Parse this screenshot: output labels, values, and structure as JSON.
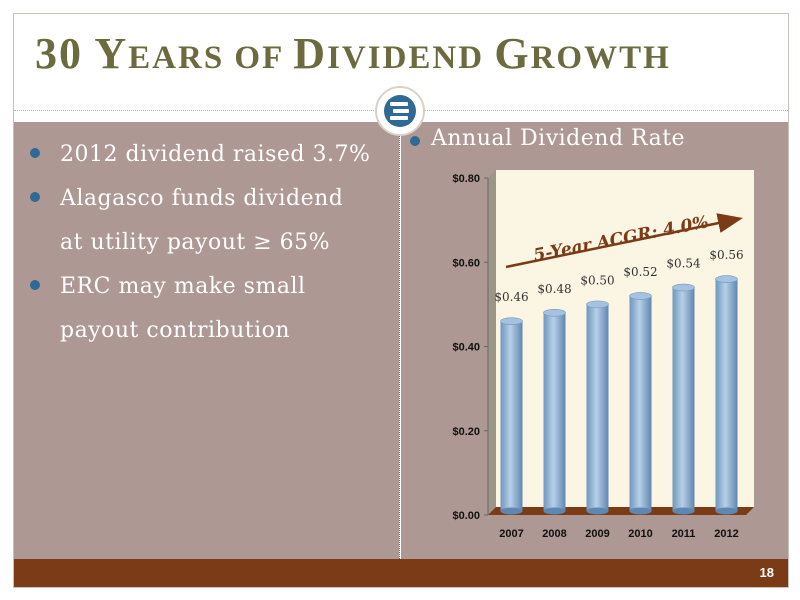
{
  "slide": {
    "title_parts": [
      {
        "text": "30 ",
        "size": "big"
      },
      {
        "text": "Y",
        "size": "big"
      },
      {
        "text": "EARS OF ",
        "size": "small"
      },
      {
        "text": "D",
        "size": "big"
      },
      {
        "text": "IVIDEND ",
        "size": "small"
      },
      {
        "text": "G",
        "size": "big"
      },
      {
        "text": "ROWTH",
        "size": "small"
      }
    ],
    "page_number": "18",
    "logo_icon": "energen-logo-icon",
    "colors": {
      "title": "#6b6b3f",
      "panel": "#ad9893",
      "footer": "#7a3b16",
      "accent": "#2f6a96"
    }
  },
  "bullets": [
    {
      "lines": [
        "2012 dividend raised 3.7%"
      ]
    },
    {
      "lines": [
        "Alagasco funds dividend",
        "at utility payout ≥ 65%"
      ]
    },
    {
      "lines": [
        "ERC may make small",
        "payout contribution"
      ]
    }
  ],
  "chart_heading": "Annual Dividend Rate",
  "chart_data": {
    "type": "bar",
    "categories": [
      "2007",
      "2008",
      "2009",
      "2010",
      "2011",
      "2012"
    ],
    "values": [
      0.46,
      0.48,
      0.5,
      0.52,
      0.54,
      0.56
    ],
    "value_labels": [
      "$0.46",
      "$0.48",
      "$0.50",
      "$0.52",
      "$0.54",
      "$0.56"
    ],
    "y_ticks": [
      {
        "value": 0.0,
        "label": "$0.00"
      },
      {
        "value": 0.2,
        "label": "$0.20"
      },
      {
        "value": 0.4,
        "label": "$0.40"
      },
      {
        "value": 0.6,
        "label": "$0.60"
      },
      {
        "value": 0.8,
        "label": "$0.80"
      }
    ],
    "ylim": [
      0,
      0.8
    ],
    "grid": false,
    "annotation": "5-Year ACGR: 4.0%",
    "bar_color": "#8fb4d6",
    "annotation_color": "#7a3b16"
  }
}
